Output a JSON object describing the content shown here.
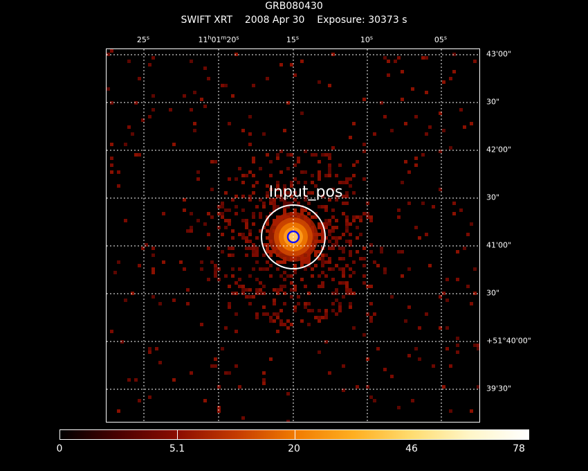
{
  "header": {
    "object_name": "GRB080430",
    "instrument": "SWIFT XRT",
    "date": "2008 Apr 30",
    "exposure": "Exposure: 30373 s"
  },
  "ra_axis": {
    "labels": [
      {
        "main": "25",
        "unit": "s"
      },
      {
        "main": "11",
        "unit": "h",
        "extra": "01",
        "extra_unit": "m",
        "tail": "20",
        "tail_unit": "s"
      },
      {
        "main": "15",
        "unit": "s"
      },
      {
        "main": "10",
        "unit": "s"
      },
      {
        "main": "05",
        "unit": "s"
      }
    ]
  },
  "dec_axis": {
    "labels": [
      "43'00\"",
      "30\"",
      "42'00\"",
      "30\"",
      "41'00\"",
      "30\"",
      "+51°40'00\"",
      "39'30\""
    ]
  },
  "annotation": {
    "label": "Input_pos"
  },
  "colorbar": {
    "labels": [
      "0",
      "5.1",
      "20",
      "46",
      "78"
    ],
    "colors": [
      "#000000",
      "#4a0000",
      "#8b0d00",
      "#c43a00",
      "#f07a00",
      "#ffae20",
      "#ffdc70",
      "#fff6c8",
      "#ffffff"
    ]
  },
  "colors": {
    "background": "#000000",
    "grid": "#ffffff",
    "inner_circle": "#1010ff",
    "outer_circle": "#ffffff",
    "dim_pixel": "#7a0a00"
  }
}
